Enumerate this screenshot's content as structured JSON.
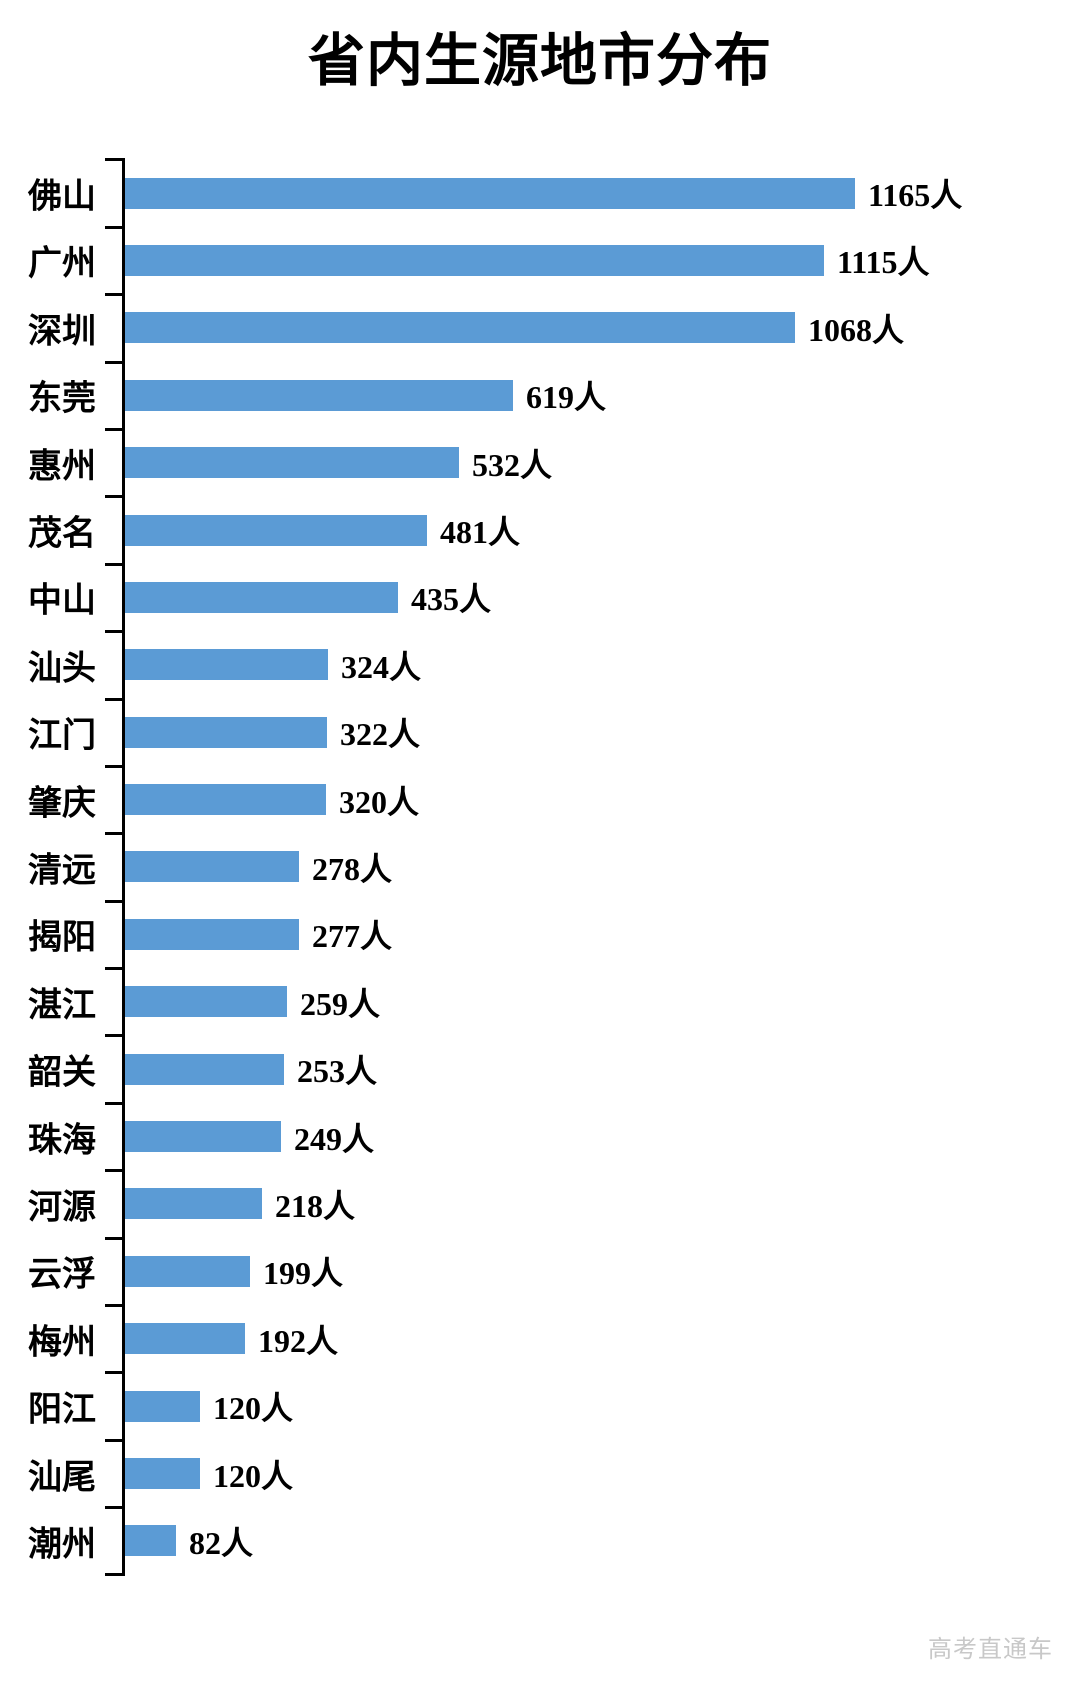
{
  "watermark": "高考直通车",
  "chart_data": {
    "type": "bar",
    "orientation": "horizontal",
    "title": "省内生源地市分布",
    "unit": "人",
    "categories": [
      "佛山",
      "广州",
      "深圳",
      "东莞",
      "惠州",
      "茂名",
      "中山",
      "汕头",
      "江门",
      "肇庆",
      "清远",
      "揭阳",
      "湛江",
      "韶关",
      "珠海",
      "河源",
      "云浮",
      "梅州",
      "阳江",
      "汕尾",
      "潮州"
    ],
    "values": [
      1165,
      1115,
      1068,
      619,
      532,
      481,
      435,
      324,
      322,
      320,
      278,
      277,
      259,
      253,
      249,
      218,
      199,
      192,
      120,
      120,
      82
    ],
    "value_labels": [
      "1165人",
      "1115人",
      "1068人",
      "619人",
      "532人",
      "481人",
      "435人",
      "324人",
      "322人",
      "320人",
      "278人",
      "277人",
      "259人",
      "253人",
      "249人",
      "218人",
      "199人",
      "192人",
      "120人",
      "120人",
      "82人"
    ],
    "bar_color": "#5B9BD5",
    "axis_color": "#000000",
    "text_color": "#000000",
    "grid": false,
    "legend": false,
    "value_labels_position": "outside-end"
  }
}
